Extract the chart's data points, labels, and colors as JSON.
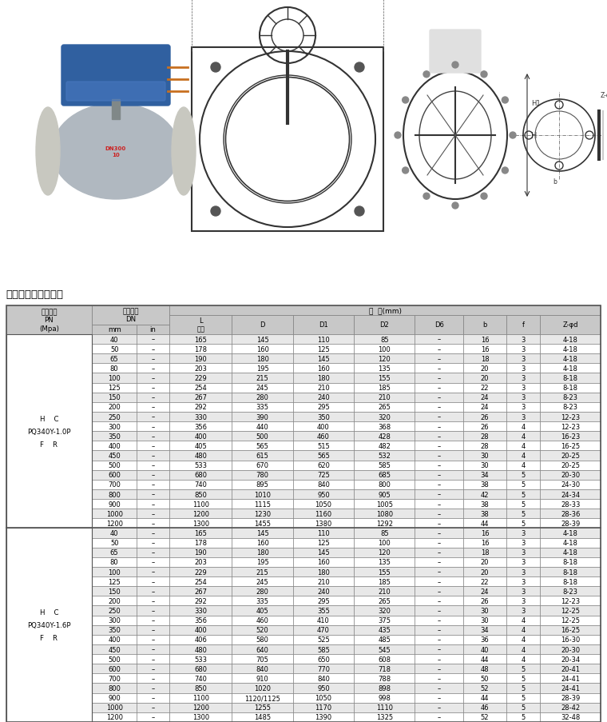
{
  "title": "主要外形和连接尺寸",
  "section1_label": "H    C\nPQ340Y-1.0P\nF    R",
  "section2_label": "H    C\nPQ340Y-1.6P\nF    R",
  "rows_section1": [
    [
      "40",
      "–",
      "165",
      "145",
      "110",
      "85",
      "–",
      "16",
      "3",
      "4-18"
    ],
    [
      "50",
      "–",
      "178",
      "160",
      "125",
      "100",
      "–",
      "16",
      "3",
      "4-18"
    ],
    [
      "65",
      "–",
      "190",
      "180",
      "145",
      "120",
      "–",
      "18",
      "3",
      "4-18"
    ],
    [
      "80",
      "–",
      "203",
      "195",
      "160",
      "135",
      "–",
      "20",
      "3",
      "4-18"
    ],
    [
      "100",
      "–",
      "229",
      "215",
      "180",
      "155",
      "–",
      "20",
      "3",
      "8-18"
    ],
    [
      "125",
      "–",
      "254",
      "245",
      "210",
      "185",
      "–",
      "22",
      "3",
      "8-18"
    ],
    [
      "150",
      "–",
      "267",
      "280",
      "240",
      "210",
      "–",
      "24",
      "3",
      "8-23"
    ],
    [
      "200",
      "–",
      "292",
      "335",
      "295",
      "265",
      "–",
      "24",
      "3",
      "8-23"
    ],
    [
      "250",
      "–",
      "330",
      "390",
      "350",
      "320",
      "–",
      "26",
      "3",
      "12-23"
    ],
    [
      "300",
      "–",
      "356",
      "440",
      "400",
      "368",
      "–",
      "26",
      "4",
      "12-23"
    ],
    [
      "350",
      "–",
      "400",
      "500",
      "460",
      "428",
      "–",
      "28",
      "4",
      "16-23"
    ],
    [
      "400",
      "–",
      "405",
      "565",
      "515",
      "482",
      "–",
      "28",
      "4",
      "16-25"
    ],
    [
      "450",
      "–",
      "480",
      "615",
      "565",
      "532",
      "–",
      "30",
      "4",
      "20-25"
    ],
    [
      "500",
      "–",
      "533",
      "670",
      "620",
      "585",
      "–",
      "30",
      "4",
      "20-25"
    ],
    [
      "600",
      "–",
      "680",
      "780",
      "725",
      "685",
      "–",
      "34",
      "5",
      "20-30"
    ],
    [
      "700",
      "–",
      "740",
      "895",
      "840",
      "800",
      "–",
      "38",
      "5",
      "24-30"
    ],
    [
      "800",
      "–",
      "850",
      "1010",
      "950",
      "905",
      "–",
      "42",
      "5",
      "24-34"
    ],
    [
      "900",
      "–",
      "1100",
      "1115",
      "1050",
      "1005",
      "–",
      "38",
      "5",
      "28-33"
    ],
    [
      "1000",
      "–",
      "1200",
      "1230",
      "1160",
      "1080",
      "–",
      "38",
      "5",
      "28-36"
    ],
    [
      "1200",
      "–",
      "1300",
      "1455",
      "1380",
      "1292",
      "–",
      "44",
      "5",
      "28-39"
    ]
  ],
  "rows_section2": [
    [
      "40",
      "–",
      "165",
      "145",
      "110",
      "85",
      "–",
      "16",
      "3",
      "4-18"
    ],
    [
      "50",
      "–",
      "178",
      "160",
      "125",
      "100",
      "–",
      "16",
      "3",
      "4-18"
    ],
    [
      "65",
      "–",
      "190",
      "180",
      "145",
      "120",
      "–",
      "18",
      "3",
      "4-18"
    ],
    [
      "80",
      "–",
      "203",
      "195",
      "160",
      "135",
      "–",
      "20",
      "3",
      "8-18"
    ],
    [
      "100",
      "–",
      "229",
      "215",
      "180",
      "155",
      "–",
      "20",
      "3",
      "8-18"
    ],
    [
      "125",
      "–",
      "254",
      "245",
      "210",
      "185",
      "–",
      "22",
      "3",
      "8-18"
    ],
    [
      "150",
      "–",
      "267",
      "280",
      "240",
      "210",
      "–",
      "24",
      "3",
      "8-23"
    ],
    [
      "200",
      "–",
      "292",
      "335",
      "295",
      "265",
      "–",
      "26",
      "3",
      "12-23"
    ],
    [
      "250",
      "–",
      "330",
      "405",
      "355",
      "320",
      "–",
      "30",
      "3",
      "12-25"
    ],
    [
      "300",
      "–",
      "356",
      "460",
      "410",
      "375",
      "–",
      "30",
      "4",
      "12-25"
    ],
    [
      "350",
      "–",
      "400",
      "520",
      "470",
      "435",
      "–",
      "34",
      "4",
      "16-25"
    ],
    [
      "400",
      "–",
      "406",
      "580",
      "525",
      "485",
      "–",
      "36",
      "4",
      "16-30"
    ],
    [
      "450",
      "–",
      "480",
      "640",
      "585",
      "545",
      "–",
      "40",
      "4",
      "20-30"
    ],
    [
      "500",
      "–",
      "533",
      "705",
      "650",
      "608",
      "–",
      "44",
      "4",
      "20-34"
    ],
    [
      "600",
      "–",
      "680",
      "840",
      "770",
      "718",
      "–",
      "48",
      "5",
      "20-41"
    ],
    [
      "700",
      "–",
      "740",
      "910",
      "840",
      "788",
      "–",
      "50",
      "5",
      "24-41"
    ],
    [
      "800",
      "–",
      "850",
      "1020",
      "950",
      "898",
      "–",
      "52",
      "5",
      "24-41"
    ],
    [
      "900",
      "–",
      "1100",
      "1120/1125",
      "1050",
      "998",
      "–",
      "44",
      "5",
      "28-39"
    ],
    [
      "1000",
      "–",
      "1200",
      "1255",
      "1170",
      "1110",
      "–",
      "46",
      "5",
      "28-42"
    ],
    [
      "1200",
      "–",
      "1300",
      "1485",
      "1390",
      "1325",
      "–",
      "52",
      "5",
      "32-48"
    ]
  ],
  "bg_alt": "#e8e8e8",
  "bg_white": "#ffffff",
  "header_bg": "#c8c8c8",
  "border_dark": "#555555",
  "border_light": "#999999"
}
